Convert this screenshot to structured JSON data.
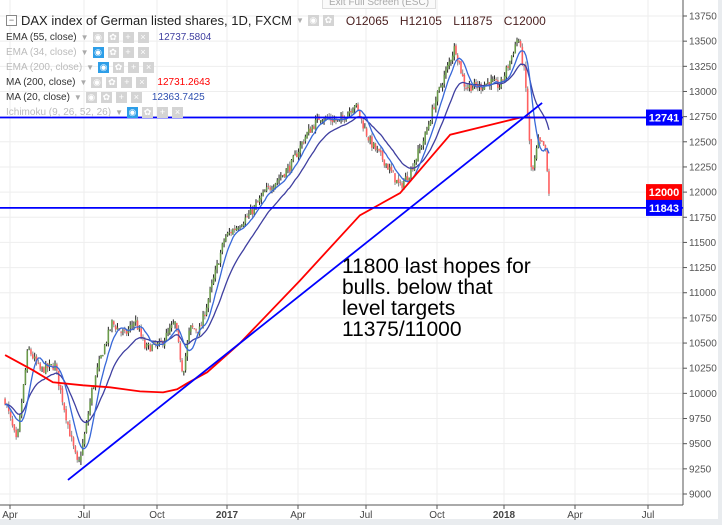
{
  "header": {
    "symbol_title": "DAX index of German listed shares, 1D, FXCM",
    "open": "O12065",
    "high": "H12105",
    "low": "L11875",
    "close": "C12000",
    "tooltip": "Exit Full Screen (ESC)"
  },
  "indicators": [
    {
      "label": "EMA (55, close)",
      "value": "12737.5804",
      "color": "#3f3fa0",
      "hidden": false
    },
    {
      "label": "EMA (34, close)",
      "value": "",
      "color": "",
      "hidden": true
    },
    {
      "label": "EMA (200, close)",
      "value": "",
      "color": "",
      "hidden": true
    },
    {
      "label": "MA (200, close)",
      "value": "12731.2643",
      "color": "#ff0000",
      "hidden": false
    },
    {
      "label": "MA (20, close)",
      "value": "12363.7425",
      "color": "#3050b0",
      "hidden": false
    },
    {
      "label": "Ichimoku (9, 26, 52, 26)",
      "value": "",
      "color": "",
      "hidden": true
    }
  ],
  "annotation": "11800 last hopes for\nbulls. below that\nlevel targets\n11375/11000",
  "chart_data": {
    "type": "candlestick",
    "x_unit": "months since Apr 2016",
    "ylim": [
      9000,
      13750
    ],
    "y_ticks": [
      13750,
      13500,
      13250,
      13000,
      12750,
      12500,
      12250,
      12000,
      11750,
      11500,
      11250,
      11000,
      10750,
      10500,
      10250,
      10000,
      9750,
      9500,
      9250,
      9000
    ],
    "x_ticks": [
      {
        "t": 0,
        "label": "Apr",
        "bold": false
      },
      {
        "t": 3,
        "label": "Jul",
        "bold": false
      },
      {
        "t": 6,
        "label": "Oct",
        "bold": false
      },
      {
        "t": 9,
        "label": "2017",
        "bold": true
      },
      {
        "t": 12,
        "label": "Apr",
        "bold": false
      },
      {
        "t": 15,
        "label": "Jul",
        "bold": false
      },
      {
        "t": 18,
        "label": "Oct",
        "bold": false
      },
      {
        "t": 21,
        "label": "2018",
        "bold": true
      },
      {
        "t": 24,
        "label": "Apr",
        "bold": false
      },
      {
        "t": 27,
        "label": "Jul",
        "bold": false
      }
    ],
    "close_path": [
      [
        -0.2,
        9935
      ],
      [
        0.28,
        9500
      ],
      [
        0.73,
        10450
      ],
      [
        1.22,
        10230
      ],
      [
        1.82,
        10280
      ],
      [
        2.43,
        9600
      ],
      [
        2.76,
        9270
      ],
      [
        3.04,
        9600
      ],
      [
        3.33,
        10030
      ],
      [
        3.66,
        10330
      ],
      [
        4.15,
        10700
      ],
      [
        4.68,
        10580
      ],
      [
        5.1,
        10730
      ],
      [
        5.51,
        10450
      ],
      [
        6.13,
        10480
      ],
      [
        6.77,
        10700
      ],
      [
        7.11,
        10200
      ],
      [
        7.41,
        10650
      ],
      [
        7.84,
        10630
      ],
      [
        8.27,
        11000
      ],
      [
        8.91,
        11550
      ],
      [
        9.97,
        11780
      ],
      [
        10.61,
        12000
      ],
      [
        11.66,
        12250
      ],
      [
        12.31,
        12550
      ],
      [
        12.97,
        12750
      ],
      [
        13.85,
        12700
      ],
      [
        14.51,
        12880
      ],
      [
        15.17,
        12500
      ],
      [
        15.8,
        12300
      ],
      [
        16.44,
        12050
      ],
      [
        16.86,
        12200
      ],
      [
        17.49,
        12550
      ],
      [
        17.92,
        12900
      ],
      [
        18.81,
        13450
      ],
      [
        19.25,
        13050
      ],
      [
        19.93,
        13050
      ],
      [
        20.37,
        13100
      ],
      [
        20.82,
        13050
      ],
      [
        21.25,
        13300
      ],
      [
        21.59,
        13550
      ],
      [
        21.89,
        13150
      ],
      [
        22.1,
        12400
      ],
      [
        22.18,
        12150
      ],
      [
        22.44,
        12500
      ],
      [
        22.73,
        12450
      ],
      [
        22.9,
        12000
      ]
    ],
    "ma200_path": [
      [
        -0.2,
        10380
      ],
      [
        0.93,
        10230
      ],
      [
        1.74,
        10110
      ],
      [
        2.96,
        10080
      ],
      [
        4.07,
        10060
      ],
      [
        5.3,
        10020
      ],
      [
        6.26,
        10010
      ],
      [
        6.86,
        10040
      ],
      [
        7.29,
        10100
      ],
      [
        8.15,
        10210
      ],
      [
        9.55,
        10500
      ],
      [
        12.08,
        11120
      ],
      [
        14.73,
        11770
      ],
      [
        16.44,
        11990
      ],
      [
        18.59,
        12570
      ],
      [
        21.68,
        12740
      ],
      [
        22.73,
        12740
      ]
    ],
    "trendline": [
      [
        2.35,
        9140
      ],
      [
        22.61,
        12886
      ]
    ],
    "horizontal_levels": [
      {
        "value": 12741,
        "label": "12741"
      },
      {
        "value": 11843,
        "label": "11843"
      }
    ],
    "last_price": {
      "value": 12000,
      "label": "12000"
    },
    "colors": {
      "up": "#6a9a4a",
      "down": "#ff6060",
      "ma200": "#ff0000",
      "ema55": "#3f3fa0",
      "ma20": "#3868d8",
      "lines": "#0000ff"
    }
  }
}
